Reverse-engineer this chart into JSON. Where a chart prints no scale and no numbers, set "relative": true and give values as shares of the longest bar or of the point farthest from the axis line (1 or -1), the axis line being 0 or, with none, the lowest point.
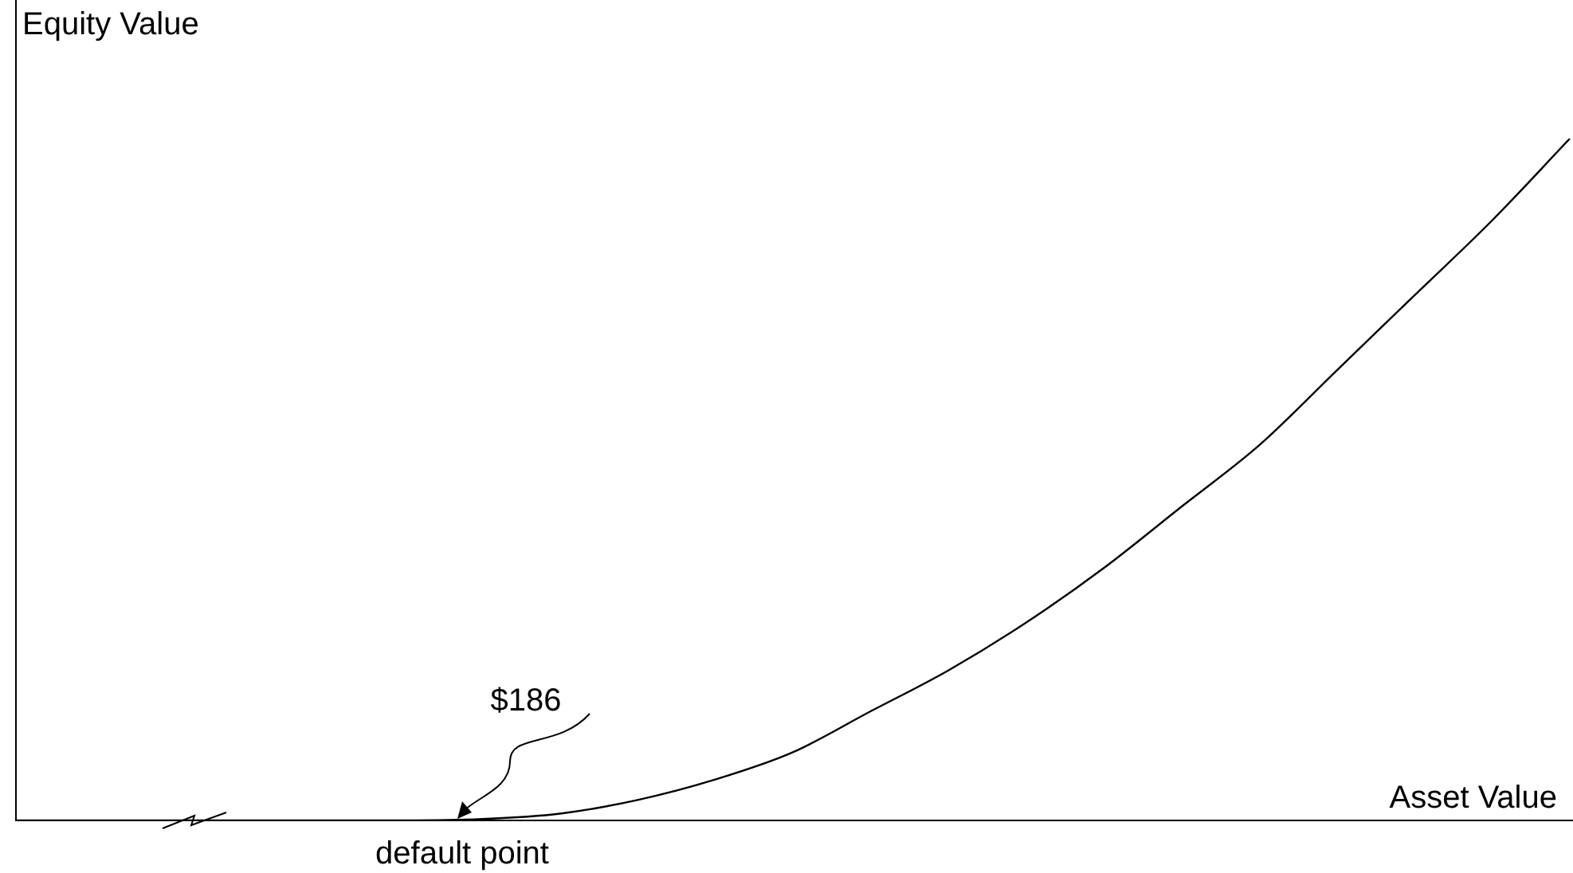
{
  "chart_data": {
    "type": "line",
    "relative": true,
    "xlabel": "Asset Value",
    "ylabel": "Equity Value",
    "categories": [
      null,
      null,
      null,
      null,
      null,
      null,
      null,
      null,
      null,
      null,
      null,
      null,
      null,
      null,
      null,
      null,
      null,
      null,
      null,
      null,
      null
    ],
    "series": [
      {
        "color": "#000000",
        "values": [
          0,
          0,
          0,
          0,
          0,
          0,
          0.002,
          0.01,
          0.03,
          0.06,
          0.1,
          0.16,
          0.22,
          0.29,
          0.37,
          0.46,
          0.55,
          0.66,
          0.77,
          0.88,
          1.0
        ]
      }
    ],
    "annotations": [
      "$186",
      "default point"
    ],
    "marker": "none",
    "legend": false
  }
}
